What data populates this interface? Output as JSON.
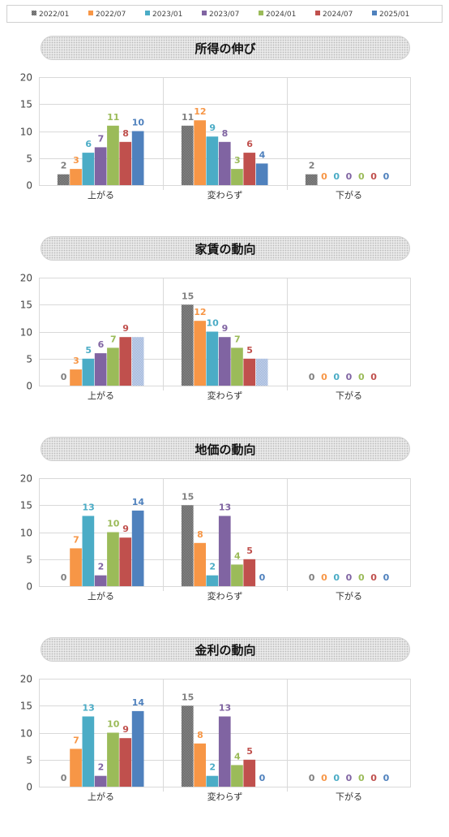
{
  "legend": {
    "series": [
      {
        "name": "2022/01",
        "color": "#7f7f7f",
        "pattern": "dots-dark"
      },
      {
        "name": "2022/07",
        "color": "#f79646",
        "pattern": "solid"
      },
      {
        "name": "2023/01",
        "color": "#4bacc6",
        "pattern": "solid"
      },
      {
        "name": "2023/07",
        "color": "#8064a2",
        "pattern": "solid"
      },
      {
        "name": "2024/01",
        "color": "#9bbb59",
        "pattern": "solid"
      },
      {
        "name": "2024/07",
        "color": "#c0504d",
        "pattern": "solid"
      },
      {
        "name": "2025/01",
        "color": "#4f81bd",
        "pattern": "solid"
      }
    ]
  },
  "chart_data": [
    {
      "type": "bar",
      "title": "所得の伸び",
      "categories": [
        "上がる",
        "変わらず",
        "下がる"
      ],
      "ylim": [
        0,
        20
      ],
      "yticks": [
        0,
        5,
        10,
        15,
        20
      ],
      "grid": true,
      "legend_position": "top",
      "series": [
        {
          "name": "2022/01",
          "values": [
            2,
            11,
            2
          ]
        },
        {
          "name": "2022/07",
          "values": [
            3,
            12,
            0
          ]
        },
        {
          "name": "2023/01",
          "values": [
            6,
            9,
            0
          ]
        },
        {
          "name": "2023/07",
          "values": [
            7,
            8,
            0
          ]
        },
        {
          "name": "2024/01",
          "values": [
            11,
            3,
            0
          ]
        },
        {
          "name": "2024/07",
          "values": [
            8,
            6,
            0
          ]
        },
        {
          "name": "2025/01",
          "values": [
            10,
            4,
            0
          ]
        }
      ]
    },
    {
      "type": "bar",
      "title": "家賃の動向",
      "categories": [
        "上がる",
        "変わらず",
        "下がる"
      ],
      "ylim": [
        0,
        20
      ],
      "yticks": [
        0,
        5,
        10,
        15,
        20
      ],
      "grid": true,
      "legend_position": "top",
      "series": [
        {
          "name": "2022/01",
          "values": [
            0,
            15,
            0
          ]
        },
        {
          "name": "2022/07",
          "values": [
            3,
            12,
            0
          ]
        },
        {
          "name": "2023/01",
          "values": [
            5,
            10,
            0
          ]
        },
        {
          "name": "2023/07",
          "values": [
            6,
            9,
            0
          ]
        },
        {
          "name": "2024/01",
          "values": [
            7,
            7,
            0
          ]
        },
        {
          "name": "2024/07",
          "values": [
            9,
            5,
            0
          ]
        },
        {
          "name": "2025/01",
          "values": [
            9,
            5,
            0
          ],
          "pattern": "dots-light",
          "show_labels": false
        }
      ]
    },
    {
      "type": "bar",
      "title": "地価の動向",
      "categories": [
        "上がる",
        "変わらず",
        "下がる"
      ],
      "ylim": [
        0,
        20
      ],
      "yticks": [
        0,
        5,
        10,
        15,
        20
      ],
      "grid": true,
      "legend_position": "top",
      "series": [
        {
          "name": "2022/01",
          "values": [
            0,
            15,
            0
          ]
        },
        {
          "name": "2022/07",
          "values": [
            7,
            8,
            0
          ]
        },
        {
          "name": "2023/01",
          "values": [
            13,
            2,
            0
          ]
        },
        {
          "name": "2023/07",
          "values": [
            2,
            13,
            0
          ]
        },
        {
          "name": "2024/01",
          "values": [
            10,
            4,
            0
          ]
        },
        {
          "name": "2024/07",
          "values": [
            9,
            5,
            0
          ]
        },
        {
          "name": "2025/01",
          "values": [
            14,
            0,
            0
          ]
        }
      ]
    },
    {
      "type": "bar",
      "title": "金利の動向",
      "categories": [
        "上がる",
        "変わらず",
        "下がる"
      ],
      "ylim": [
        0,
        20
      ],
      "yticks": [
        0,
        5,
        10,
        15,
        20
      ],
      "grid": true,
      "legend_position": "top",
      "series": [
        {
          "name": "2022/01",
          "values": [
            0,
            15,
            0
          ]
        },
        {
          "name": "2022/07",
          "values": [
            7,
            8,
            0
          ]
        },
        {
          "name": "2023/01",
          "values": [
            13,
            2,
            0
          ]
        },
        {
          "name": "2023/07",
          "values": [
            2,
            13,
            0
          ]
        },
        {
          "name": "2024/01",
          "values": [
            10,
            4,
            0
          ]
        },
        {
          "name": "2024/07",
          "values": [
            9,
            5,
            0
          ]
        },
        {
          "name": "2025/01",
          "values": [
            14,
            0,
            0
          ]
        }
      ]
    }
  ]
}
